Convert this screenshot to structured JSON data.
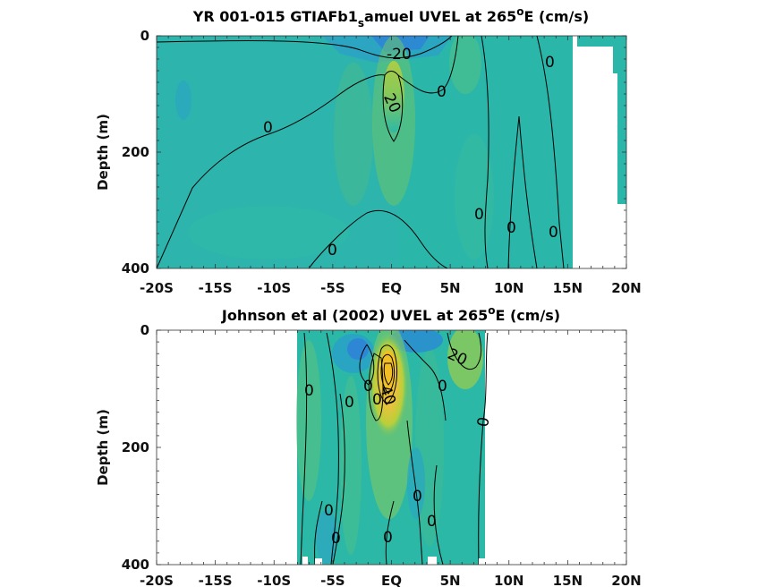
{
  "chart_data": [
    {
      "type": "contour",
      "title_main": "YR 001-015 GTIAFb1",
      "title_sub": "s",
      "title_rest": "amuel UVEL at 265",
      "title_sup": "o",
      "title_end": "E (cm/s)",
      "ylabel": "Depth (m)",
      "x_ticks": [
        "-20S",
        "-15S",
        "-10S",
        "-5S",
        "EQ",
        "5N",
        "10N",
        "15N",
        "20N"
      ],
      "y_ticks": [
        "0",
        "200",
        "400"
      ],
      "xlim": [
        -20,
        20
      ],
      "ylim": [
        0,
        400
      ],
      "contour_labels": [
        "-20",
        "20",
        "0",
        "0",
        "0",
        "0",
        "0",
        "0",
        "0"
      ]
    },
    {
      "type": "contour",
      "title_main": "Johnson et al (2002) UVEL at 265",
      "title_sup": "o",
      "title_end": "E (cm/s)",
      "ylabel": "Depth (m)",
      "x_ticks": [
        "-20S",
        "-15S",
        "-10S",
        "-5S",
        "EQ",
        "5N",
        "10N",
        "15N",
        "20N"
      ],
      "y_ticks": [
        "0",
        "200",
        "400"
      ],
      "xlim": [
        -20,
        20
      ],
      "ylim": [
        0,
        400
      ],
      "contour_labels": [
        "40",
        "20",
        "0",
        "0",
        "0",
        "0",
        "0",
        "0",
        "0",
        "0",
        "0",
        "0",
        "0",
        "0"
      ]
    }
  ]
}
